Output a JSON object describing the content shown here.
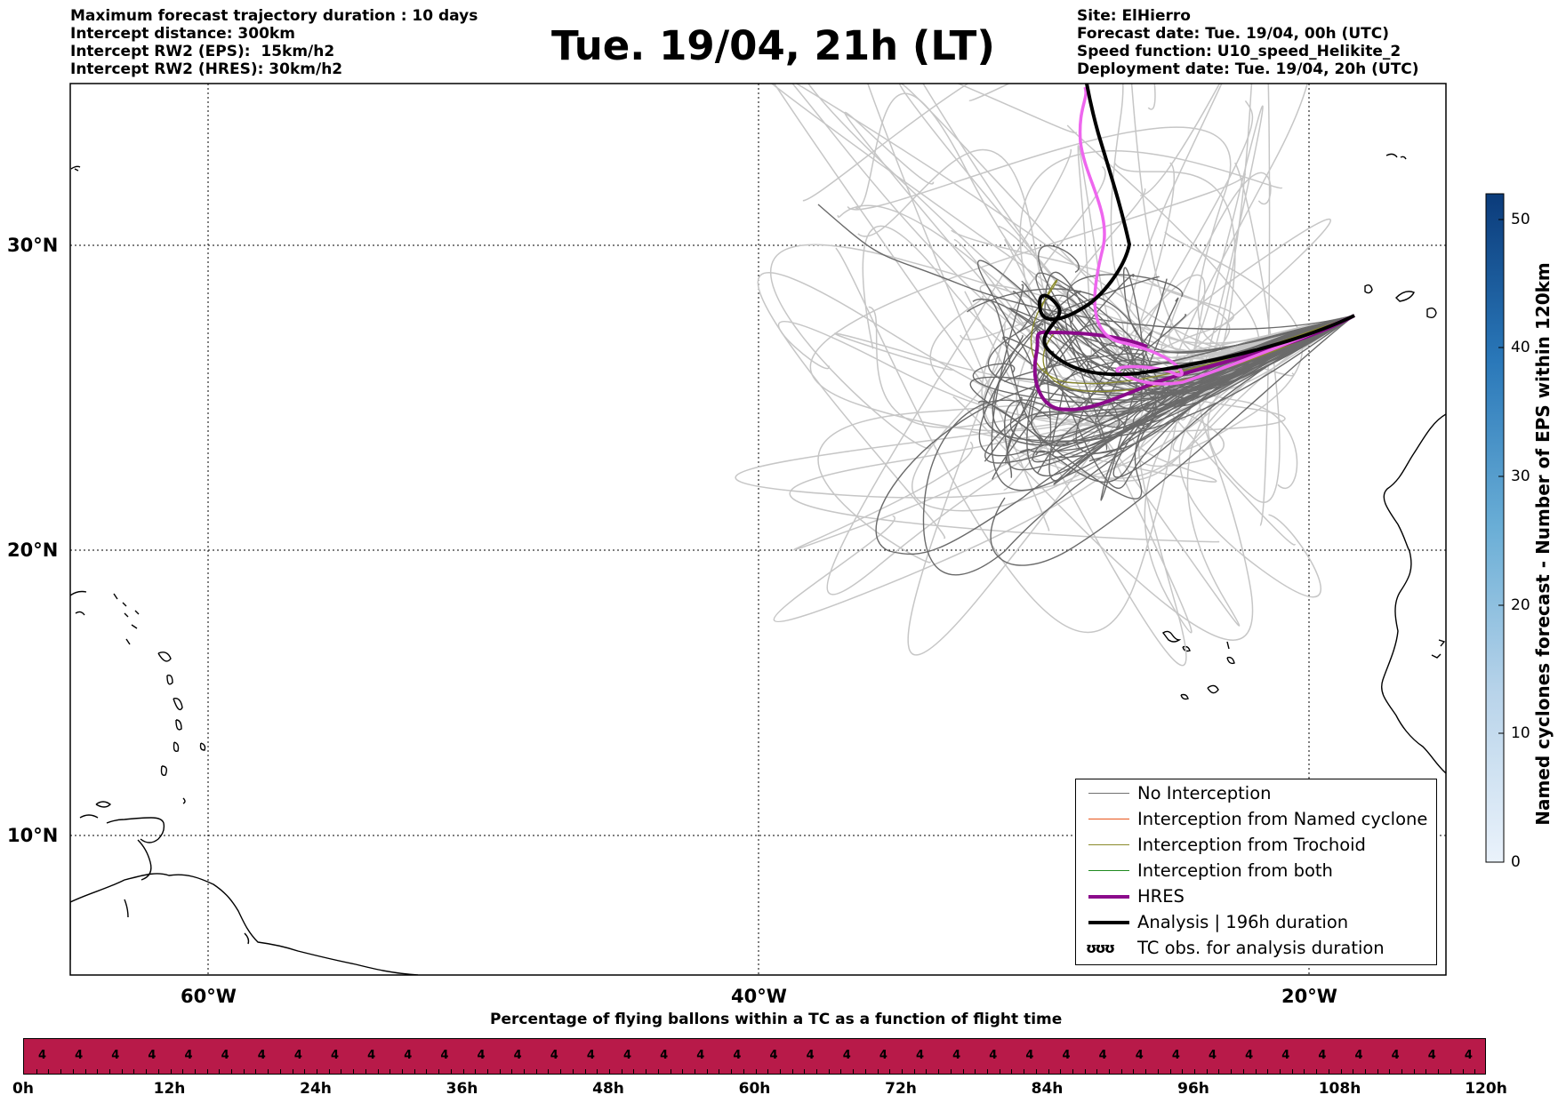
{
  "header": {
    "left_lines": [
      "Maximum forecast trajectory duration : 10 days",
      "Intercept distance: 300km",
      "Intercept RW2 (EPS):  15km/h2",
      "Intercept RW2 (HRES): 30km/h2"
    ],
    "title": "Tue. 19/04, 21h (LT)",
    "right_lines": [
      "Site: ElHierro",
      "Forecast date: Tue. 19/04, 00h (UTC)",
      "Speed function: U10_speed_Helikite_2",
      "Deployment date: Tue. 19/04, 20h (UTC)"
    ]
  },
  "map": {
    "lat_labels": [
      "30°N",
      "20°N",
      "10°N"
    ],
    "lon_labels": [
      "60°W",
      "40°W",
      "20°W"
    ],
    "lon_range": [
      -65,
      -15
    ],
    "lat_range": [
      5.4,
      34.7
    ]
  },
  "colorbar": {
    "label": "Named cyclones forecast - Number of EPS within 120km",
    "ticks": [
      "0",
      "10",
      "20",
      "30",
      "40",
      "50"
    ],
    "range": [
      0,
      52
    ]
  },
  "legend": {
    "items": [
      {
        "label": "No Interception",
        "color": "#707070"
      },
      {
        "label": "Interception from Named cyclone",
        "color": "#e8541a"
      },
      {
        "label": "Interception from Trochoid",
        "color": "#8a8a2a"
      },
      {
        "label": "Interception from both",
        "color": "#1f8a1f"
      },
      {
        "label": "HRES",
        "color": "#8b0a8b"
      },
      {
        "label": "Analysis | 196h duration",
        "color": "#000000"
      }
    ],
    "tc_label": "TC obs. for analysis duration",
    "tc_symbol": "ʊʊʊ"
  },
  "bar": {
    "title": "Percentage of flying ballons within a TC as a function of flight time",
    "color": "#b81a49",
    "value_label": "4",
    "time_labels": [
      "0h",
      "12h",
      "24h",
      "36h",
      "48h",
      "60h",
      "72h",
      "84h",
      "96h",
      "108h",
      "120h"
    ]
  }
}
